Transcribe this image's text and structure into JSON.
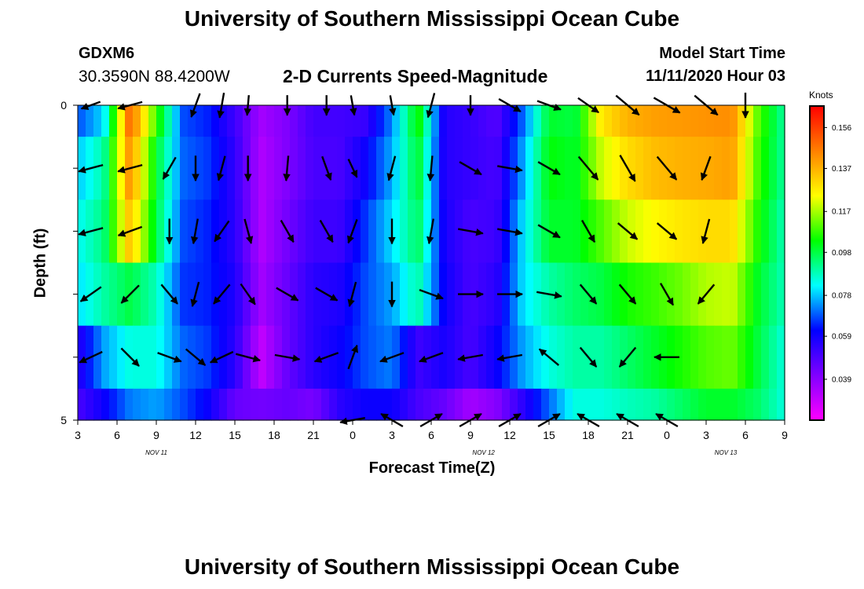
{
  "header": {
    "title": "University of Southern Mississippi Ocean Cube",
    "station": "GDXM6",
    "coordinates": "30.3590N 88.4200W",
    "subtitle": "2-D Currents Speed-Magnitude",
    "model_start_label": "Model Start Time",
    "model_start_value": "11/11/2020 Hour 03"
  },
  "footer": {
    "title": "University of Southern Mississippi Ocean Cube"
  },
  "chart_data": {
    "type": "heatmap",
    "title": "2-D Currents Speed-Magnitude",
    "xlabel": "Forecast Time(Z)",
    "ylabel": "Depth (ft)",
    "x_tick_labels": [
      "3",
      "6",
      "9",
      "12",
      "15",
      "18",
      "21",
      "0",
      "3",
      "6",
      "9",
      "12",
      "15",
      "18",
      "21",
      "0",
      "3",
      "6",
      "9"
    ],
    "x_range_hours": [
      0,
      54
    ],
    "day_labels": [
      {
        "text": "NOV 11",
        "hour": 6
      },
      {
        "text": "NOV 12",
        "hour": 31
      },
      {
        "text": "NOV 13",
        "hour": 49.5
      }
    ],
    "y_tick_labels": [
      "0",
      "5"
    ],
    "ylim_ft": [
      0,
      5
    ],
    "colorbar": {
      "unit_label": "Knots",
      "tick_labels": [
        "0.156",
        "0.137",
        "0.117",
        "0.098",
        "0.078",
        "0.059",
        "0.039"
      ],
      "tick_values": [
        0.156,
        0.137,
        0.117,
        0.098,
        0.078,
        0.059,
        0.039
      ],
      "range": [
        0.02,
        0.166
      ],
      "colors": [
        "#ff00ff",
        "#8000ff",
        "#0000ff",
        "#00ffff",
        "#00ff00",
        "#ffff00",
        "#ff8000",
        "#ff0000"
      ]
    },
    "speed_hours": [
      0,
      2,
      4,
      6,
      8,
      10,
      12,
      14,
      16,
      18,
      20,
      22,
      24,
      26,
      28,
      30,
      32,
      34,
      36,
      38,
      40,
      42,
      44,
      46,
      48,
      50,
      52,
      54
    ],
    "speed_depths_ft": [
      0.25,
      1.25,
      2.25,
      3.25,
      4.25,
      4.75
    ],
    "speed_knots": [
      [
        0.068,
        0.08,
        0.15,
        0.108,
        0.068,
        0.064,
        0.052,
        0.035,
        0.041,
        0.051,
        0.051,
        0.053,
        0.073,
        0.105,
        0.056,
        0.053,
        0.048,
        0.07,
        0.1,
        0.098,
        0.128,
        0.137,
        0.14,
        0.141,
        0.142,
        0.143,
        0.11,
        0.09
      ],
      [
        0.078,
        0.09,
        0.143,
        0.1,
        0.07,
        0.066,
        0.054,
        0.033,
        0.041,
        0.05,
        0.05,
        0.06,
        0.076,
        0.1,
        0.056,
        0.053,
        0.05,
        0.075,
        0.103,
        0.1,
        0.12,
        0.13,
        0.135,
        0.137,
        0.138,
        0.14,
        0.108,
        0.09
      ],
      [
        0.083,
        0.093,
        0.135,
        0.098,
        0.068,
        0.064,
        0.055,
        0.033,
        0.043,
        0.052,
        0.052,
        0.066,
        0.08,
        0.096,
        0.058,
        0.05,
        0.052,
        0.08,
        0.1,
        0.1,
        0.11,
        0.12,
        0.125,
        0.128,
        0.13,
        0.13,
        0.105,
        0.088
      ],
      [
        0.08,
        0.09,
        0.098,
        0.088,
        0.066,
        0.064,
        0.057,
        0.035,
        0.045,
        0.055,
        0.057,
        0.068,
        0.075,
        0.09,
        0.06,
        0.05,
        0.055,
        0.08,
        0.09,
        0.095,
        0.098,
        0.105,
        0.108,
        0.112,
        0.118,
        0.12,
        0.1,
        0.088
      ],
      [
        0.055,
        0.075,
        0.085,
        0.085,
        0.07,
        0.066,
        0.055,
        0.03,
        0.045,
        0.055,
        0.06,
        0.068,
        0.072,
        0.052,
        0.058,
        0.05,
        0.06,
        0.075,
        0.085,
        0.09,
        0.09,
        0.095,
        0.1,
        0.105,
        0.11,
        0.112,
        0.098,
        0.085
      ],
      [
        0.05,
        0.06,
        0.072,
        0.075,
        0.068,
        0.06,
        0.045,
        0.043,
        0.045,
        0.042,
        0.055,
        0.06,
        0.06,
        0.05,
        0.045,
        0.035,
        0.04,
        0.055,
        0.07,
        0.085,
        0.085,
        0.088,
        0.09,
        0.095,
        0.1,
        0.1,
        0.095,
        0.085
      ]
    ],
    "vector_hours": [
      1,
      4,
      7,
      9,
      11,
      13,
      16,
      19,
      21,
      24,
      27,
      30,
      33,
      36,
      39,
      42,
      45,
      48,
      51,
      54
    ],
    "vector_depths_ft": [
      0,
      1,
      2,
      3,
      4,
      5
    ],
    "vector_directions_deg": [
      [
        250,
        255,
        null,
        200,
        190,
        185,
        180,
        180,
        170,
        170,
        195,
        180,
        120,
        110,
        125,
        130,
        120,
        130,
        180,
        null
      ],
      [
        255,
        255,
        210,
        180,
        195,
        180,
        185,
        160,
        155,
        195,
        185,
        120,
        100,
        120,
        140,
        150,
        140,
        200,
        null,
        null
      ],
      [
        255,
        250,
        180,
        190,
        215,
        165,
        150,
        150,
        200,
        180,
        190,
        100,
        100,
        120,
        150,
        130,
        130,
        195,
        null,
        null
      ],
      [
        235,
        225,
        140,
        195,
        220,
        145,
        120,
        120,
        195,
        180,
        110,
        90,
        90,
        100,
        140,
        140,
        150,
        220,
        null,
        null
      ],
      [
        245,
        135,
        110,
        130,
        245,
        105,
        100,
        250,
        20,
        250,
        250,
        260,
        260,
        310,
        140,
        220,
        270,
        null,
        null,
        null
      ],
      [
        null,
        null,
        null,
        null,
        null,
        null,
        null,
        null,
        260,
        300,
        60,
        60,
        60,
        60,
        300,
        300,
        300,
        null,
        null,
        null
      ]
    ],
    "vector_speed_knots": [
      [
        0.04,
        0.05,
        null,
        0.05,
        0.05,
        0.04,
        0.04,
        0.04,
        0.04,
        0.04,
        0.05,
        0.04,
        0.05,
        0.05,
        0.05,
        0.06,
        0.06,
        0.06,
        0.05,
        null
      ],
      [
        0.05,
        0.05,
        0.05,
        0.05,
        0.05,
        0.05,
        0.05,
        0.05,
        0.04,
        0.05,
        0.05,
        0.05,
        0.05,
        0.05,
        0.06,
        0.06,
        0.06,
        0.05,
        null,
        null
      ],
      [
        0.05,
        0.05,
        0.05,
        0.05,
        0.05,
        0.05,
        0.05,
        0.05,
        0.05,
        0.05,
        0.05,
        0.05,
        0.05,
        0.05,
        0.05,
        0.05,
        0.05,
        0.05,
        null,
        null
      ],
      [
        0.05,
        0.05,
        0.05,
        0.05,
        0.05,
        0.05,
        0.05,
        0.05,
        0.05,
        0.05,
        0.05,
        0.05,
        0.05,
        0.05,
        0.05,
        0.05,
        0.05,
        0.05,
        null,
        null
      ],
      [
        0.05,
        0.05,
        0.05,
        0.05,
        0.05,
        0.05,
        0.05,
        0.05,
        0.05,
        0.05,
        0.05,
        0.05,
        0.05,
        0.05,
        0.05,
        0.05,
        0.05,
        null,
        null,
        null
      ],
      [
        null,
        null,
        null,
        null,
        null,
        null,
        null,
        null,
        0.05,
        0.05,
        0.05,
        0.05,
        0.05,
        0.05,
        0.05,
        0.05,
        0.05,
        null,
        null,
        null
      ]
    ]
  }
}
